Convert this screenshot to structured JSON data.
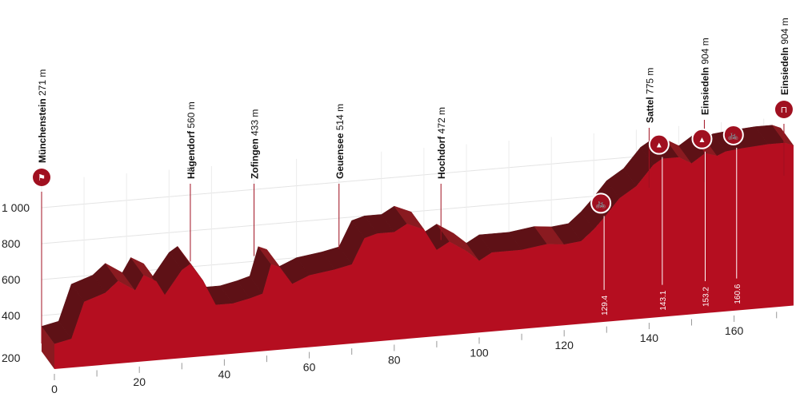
{
  "chart_data": {
    "type": "area",
    "title": "",
    "xlabel": "",
    "ylabel": "",
    "xlim": [
      0,
      174
    ],
    "ylim": [
      200,
      1100
    ],
    "x_ticks": [
      "0",
      "20",
      "40",
      "60",
      "80",
      "100",
      "120",
      "140",
      "160"
    ],
    "y_ticks": [
      "200",
      "400",
      "600",
      "800",
      "1 000"
    ],
    "x_tick_values": [
      0,
      20,
      40,
      60,
      80,
      100,
      120,
      140,
      160
    ],
    "y_tick_values": [
      200,
      400,
      600,
      800,
      1000
    ],
    "profile": [
      [
        0,
        340
      ],
      [
        4,
        360
      ],
      [
        7,
        560
      ],
      [
        12,
        600
      ],
      [
        15,
        660
      ],
      [
        19,
        600
      ],
      [
        21,
        680
      ],
      [
        24,
        640
      ],
      [
        26,
        560
      ],
      [
        30,
        690
      ],
      [
        32,
        720
      ],
      [
        35,
        620
      ],
      [
        38,
        480
      ],
      [
        42,
        480
      ],
      [
        46,
        500
      ],
      [
        49,
        520
      ],
      [
        51,
        680
      ],
      [
        53,
        660
      ],
      [
        56,
        560
      ],
      [
        60,
        600
      ],
      [
        66,
        620
      ],
      [
        70,
        640
      ],
      [
        73,
        780
      ],
      [
        76,
        800
      ],
      [
        80,
        800
      ],
      [
        83,
        840
      ],
      [
        87,
        800
      ],
      [
        90,
        680
      ],
      [
        93,
        720
      ],
      [
        97,
        660
      ],
      [
        100,
        600
      ],
      [
        103,
        640
      ],
      [
        110,
        640
      ],
      [
        116,
        660
      ],
      [
        120,
        650
      ],
      [
        124,
        660
      ],
      [
        127,
        720
      ],
      [
        129.4,
        780
      ],
      [
        133,
        880
      ],
      [
        137,
        940
      ],
      [
        141,
        1050
      ],
      [
        143.1,
        1080
      ],
      [
        147,
        1080
      ],
      [
        150,
        1040
      ],
      [
        153.2,
        1090
      ],
      [
        156,
        1070
      ],
      [
        158,
        1090
      ],
      [
        162,
        1100
      ],
      [
        168,
        1110
      ],
      [
        172,
        1110
      ],
      [
        174,
        1090
      ]
    ],
    "locations": [
      {
        "name": "Münchenstein",
        "elev": "271 m",
        "km": 0,
        "icon": "start-flag-icon"
      },
      {
        "name": "Hägendorf",
        "elev": "560 m",
        "km": 32
      },
      {
        "name": "Zofingen",
        "elev": "433 m",
        "km": 47
      },
      {
        "name": "Geuensee",
        "elev": "514 m",
        "km": 67
      },
      {
        "name": "Hochdorf",
        "elev": "472 m",
        "km": 91
      },
      {
        "name": "Sattel",
        "elev": "775 m",
        "km": 140
      },
      {
        "name": "Einsiedeln",
        "elev": "904 m",
        "km": 153
      },
      {
        "name": "Einsiedeln",
        "elev": "904 m",
        "km": 174,
        "icon": "finish-icon"
      }
    ],
    "markers": [
      {
        "km": 129.4,
        "label": "129.4",
        "icon": "sprint-icon"
      },
      {
        "km": 143.1,
        "label": "143.1",
        "icon": "climb-cat-2-icon",
        "cat": "2"
      },
      {
        "km": 153.2,
        "label": "153.2",
        "icon": "climb-cat-3-icon",
        "cat": "3"
      },
      {
        "km": 160.6,
        "label": "160.6",
        "icon": "sprint-icon"
      }
    ],
    "colors": {
      "front": "#b50e20",
      "top": "#6e1419",
      "accent": "#a01020"
    }
  }
}
